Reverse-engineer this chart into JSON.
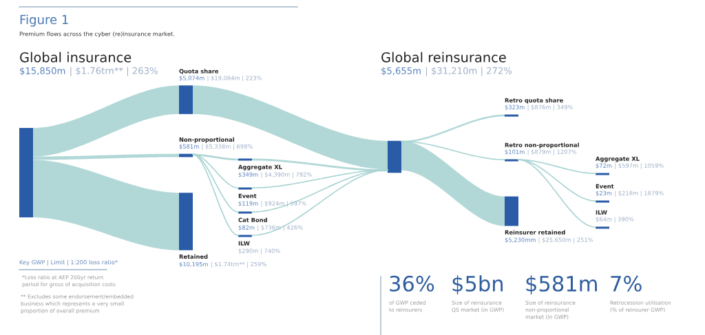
{
  "chart_data": {
    "type": "other",
    "title": "Figure 1",
    "subtitle": "Premium flows across the cyber (re)insurance market.",
    "categories": [
      "Global insurance",
      "Quota share",
      "Non-proportional",
      "Retained",
      "Aggregate XL",
      "Event",
      "Cat Bond",
      "ILW",
      "Global reinsurance",
      "Retro quota share",
      "Retro non-proportional",
      "Reinsurer retained",
      "Aggregate XL",
      "Event",
      "ILW"
    ],
    "values": [
      15850,
      5074,
      581,
      10195,
      349,
      119,
      82,
      null,
      5655,
      323,
      101,
      5230,
      72,
      23,
      null
    ],
    "value_labels": [
      "$15,850m",
      "$5,074m",
      "$581m",
      "$10,195m",
      "$349m",
      "$119m",
      "$82m",
      null,
      "$5,655m",
      "$323m",
      "$101m",
      "$5,230mm",
      "$72m",
      "$23m",
      null
    ],
    "color": "#2a5ba6",
    "annotations": [
      "Key GWP | Limit | 1:200 loss ratio*",
      "*Loss ratio at AEP 200yr return\nperiod for gross of acquisition costs",
      "** Excludes some endorsement/embedded\nbusiness which represents a very small\nproportion of overall premium",
      "36%",
      "of GWP ceded\nto reinsurers",
      "$5bn",
      "Size of reinsurance\nQS market (in GWP)",
      "$581m",
      "Size of reinsurance\nnon-proportional\nmarket (in GWP)",
      "7%",
      "Retrocession utilisation\n(% of reinsurer GWP)",
      "| $1.76trn** | 263%",
      "| $19,084m | 223%",
      "| $5,338m | 698%",
      "| $1.74trn** | 259%",
      "| $4,390m | 792%",
      "| $924m | 597%",
      "| $736m | 426%",
      "$290m | 740%",
      "| $31,210m | 272%",
      "| $876m | 349%",
      "| $879m | 1207%",
      "| $25,650m | 251%",
      "| $597m | 1059%",
      "| $218m | 1879%",
      "$64m | 390%"
    ]
  }
}
